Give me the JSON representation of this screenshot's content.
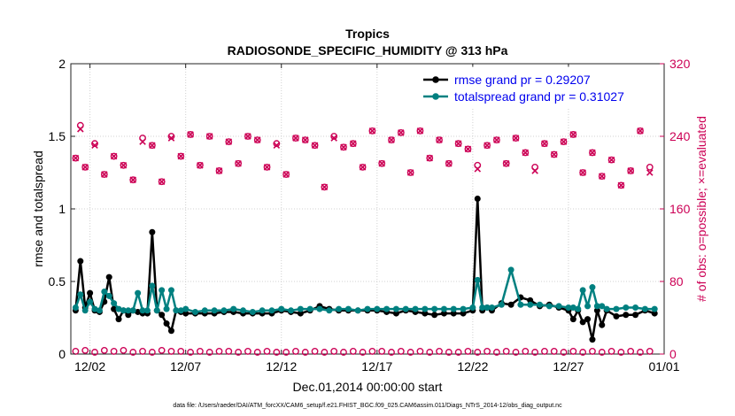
{
  "chart_data": {
    "type": "line",
    "title": "Tropics",
    "subtitle": "RADIOSONDE_SPECIFIC_HUMIDITY @ 313 hPa",
    "xlabel": "Dec.01,2014 00:00:00 start",
    "ylabel": "rmse and totalspread",
    "ylabel_right": "# of obs: o=possible; ×=evaluated",
    "footnote": "data file: /Users/raeder/DAI/ATM_forcXX/CAM6_setup/f.e21.FHIST_BGC.f09_025.CAM6assim.011/Diags_NTrS_2014-12/obs_diag_output.nc",
    "xlim": [
      1.0,
      32.0
    ],
    "ylim": [
      0,
      2
    ],
    "ylim_right": [
      0,
      320
    ],
    "x_tick_values": [
      2,
      7,
      12,
      17,
      22,
      27,
      32
    ],
    "x_tick_labels": [
      "12/02",
      "12/07",
      "12/12",
      "12/17",
      "12/22",
      "12/27",
      "01/01"
    ],
    "y_tick_labels": [
      "0",
      "0.5",
      "1",
      "1.5",
      "2"
    ],
    "y_tick_values": [
      0,
      0.5,
      1,
      1.5,
      2
    ],
    "y_right_tick_labels": [
      "0",
      "80",
      "160",
      "240",
      "320"
    ],
    "y_right_tick_values": [
      0,
      80,
      160,
      240,
      320
    ],
    "grid": true,
    "legend_position": "top-right",
    "colors": {
      "rmse": "#000000",
      "spread": "#008080",
      "obs": "#cc0055"
    },
    "series": [
      {
        "name": "rmse grand pr = 0.29207",
        "axis": "left",
        "color": "#000000",
        "x": [
          1.25,
          1.5,
          1.75,
          2.0,
          2.25,
          2.5,
          2.75,
          3.0,
          3.25,
          3.5,
          3.75,
          4.0,
          4.25,
          4.5,
          4.75,
          5.0,
          5.25,
          5.5,
          5.75,
          6.0,
          6.25,
          6.5,
          6.75,
          7.0,
          7.5,
          8.0,
          8.5,
          9.0,
          9.5,
          10.0,
          10.5,
          11.0,
          11.5,
          12.0,
          12.5,
          13.0,
          13.5,
          14.0,
          14.5,
          15.0,
          15.5,
          16.0,
          16.5,
          17.0,
          17.5,
          18.0,
          18.5,
          19.0,
          19.5,
          20.0,
          20.5,
          21.0,
          21.5,
          22.0,
          22.25,
          22.5,
          22.75,
          23.0,
          23.5,
          24.0,
          24.5,
          25.0,
          25.5,
          26.0,
          26.5,
          27.0,
          27.25,
          27.5,
          27.75,
          28.0,
          28.25,
          28.5,
          28.75,
          29.0,
          29.5,
          30.0,
          30.5,
          31.0,
          31.5
        ],
        "values": [
          0.3,
          0.64,
          0.32,
          0.42,
          0.3,
          0.29,
          0.36,
          0.53,
          0.31,
          0.24,
          0.3,
          0.27,
          0.3,
          0.29,
          0.28,
          0.28,
          0.84,
          0.3,
          0.27,
          0.21,
          0.16,
          0.3,
          0.29,
          0.28,
          0.28,
          0.28,
          0.28,
          0.29,
          0.29,
          0.28,
          0.28,
          0.28,
          0.28,
          0.3,
          0.29,
          0.28,
          0.3,
          0.33,
          0.31,
          0.3,
          0.3,
          0.3,
          0.3,
          0.3,
          0.29,
          0.28,
          0.3,
          0.29,
          0.28,
          0.27,
          0.28,
          0.28,
          0.28,
          0.3,
          1.07,
          0.3,
          0.32,
          0.3,
          0.35,
          0.34,
          0.39,
          0.37,
          0.33,
          0.34,
          0.32,
          0.3,
          0.24,
          0.3,
          0.22,
          0.24,
          0.1,
          0.3,
          0.2,
          0.3,
          0.26,
          0.27,
          0.27,
          0.3,
          0.28
        ]
      },
      {
        "name": "totalspread grand pr = 0.31027",
        "axis": "left",
        "color": "#008080",
        "x": [
          1.25,
          1.5,
          1.75,
          2.0,
          2.25,
          2.5,
          2.75,
          3.0,
          3.25,
          3.5,
          3.75,
          4.0,
          4.25,
          4.5,
          4.75,
          5.0,
          5.25,
          5.5,
          5.75,
          6.0,
          6.25,
          6.5,
          6.75,
          7.0,
          7.5,
          8.0,
          8.5,
          9.0,
          9.5,
          10.0,
          10.5,
          11.0,
          11.5,
          12.0,
          12.5,
          13.0,
          13.5,
          14.0,
          14.5,
          15.0,
          15.5,
          16.0,
          16.5,
          17.0,
          17.5,
          18.0,
          18.5,
          19.0,
          19.5,
          20.0,
          20.5,
          21.0,
          21.5,
          22.0,
          22.25,
          22.5,
          22.75,
          23.0,
          23.5,
          24.0,
          24.5,
          25.0,
          25.5,
          26.0,
          26.5,
          27.0,
          27.25,
          27.5,
          27.75,
          28.0,
          28.25,
          28.5,
          28.75,
          29.0,
          29.5,
          30.0,
          30.5,
          31.0,
          31.5
        ],
        "values": [
          0.32,
          0.41,
          0.3,
          0.36,
          0.31,
          0.3,
          0.43,
          0.4,
          0.35,
          0.31,
          0.3,
          0.3,
          0.3,
          0.42,
          0.3,
          0.3,
          0.47,
          0.3,
          0.44,
          0.31,
          0.44,
          0.3,
          0.3,
          0.31,
          0.29,
          0.3,
          0.3,
          0.3,
          0.31,
          0.3,
          0.29,
          0.3,
          0.3,
          0.31,
          0.3,
          0.31,
          0.31,
          0.31,
          0.3,
          0.31,
          0.31,
          0.3,
          0.31,
          0.31,
          0.31,
          0.31,
          0.31,
          0.31,
          0.31,
          0.31,
          0.31,
          0.31,
          0.31,
          0.32,
          0.51,
          0.32,
          0.32,
          0.32,
          0.34,
          0.58,
          0.34,
          0.34,
          0.34,
          0.33,
          0.33,
          0.32,
          0.32,
          0.31,
          0.44,
          0.33,
          0.46,
          0.33,
          0.33,
          0.31,
          0.31,
          0.32,
          0.32,
          0.31,
          0.31
        ]
      },
      {
        "name": "obs possible",
        "axis": "right",
        "marker": "o",
        "color": "#cc0055",
        "x": [
          1.25,
          1.5,
          1.75,
          2.25,
          2.75,
          3.25,
          3.75,
          4.25,
          4.75,
          5.25,
          5.75,
          6.25,
          6.75,
          7.25,
          7.75,
          8.25,
          8.75,
          9.25,
          9.75,
          10.25,
          10.75,
          11.25,
          11.75,
          12.25,
          12.75,
          13.25,
          13.75,
          14.25,
          14.75,
          15.25,
          15.75,
          16.25,
          16.75,
          17.25,
          17.75,
          18.25,
          18.75,
          19.25,
          19.75,
          20.25,
          20.75,
          21.25,
          21.75,
          22.25,
          22.75,
          23.25,
          23.75,
          24.25,
          24.75,
          25.25,
          25.75,
          26.25,
          26.75,
          27.25,
          27.75,
          28.25,
          28.75,
          29.25,
          29.75,
          30.25,
          30.75,
          31.25
        ],
        "values": [
          216,
          252,
          206,
          232,
          198,
          218,
          208,
          192,
          238,
          230,
          190,
          240,
          218,
          242,
          208,
          240,
          202,
          234,
          210,
          240,
          236,
          206,
          232,
          198,
          238,
          236,
          230,
          184,
          240,
          228,
          232,
          206,
          246,
          210,
          236,
          244,
          200,
          246,
          216,
          236,
          210,
          232,
          226,
          208,
          230,
          236,
          210,
          238,
          222,
          206,
          232,
          220,
          234,
          242,
          200,
          222,
          196,
          214,
          186,
          202,
          246,
          206
        ]
      },
      {
        "name": "obs evaluated",
        "axis": "right",
        "marker": "x",
        "color": "#cc0055",
        "x": [
          1.25,
          1.5,
          1.75,
          2.25,
          2.75,
          3.25,
          3.75,
          4.25,
          4.75,
          5.25,
          5.75,
          6.25,
          6.75,
          7.25,
          7.75,
          8.25,
          8.75,
          9.25,
          9.75,
          10.25,
          10.75,
          11.25,
          11.75,
          12.25,
          12.75,
          13.25,
          13.75,
          14.25,
          14.75,
          15.25,
          15.75,
          16.25,
          16.75,
          17.25,
          17.75,
          18.25,
          18.75,
          19.25,
          19.75,
          20.25,
          20.75,
          21.25,
          21.75,
          22.25,
          22.75,
          23.25,
          23.75,
          24.25,
          24.75,
          25.25,
          25.75,
          26.25,
          26.75,
          27.25,
          27.75,
          28.25,
          28.75,
          29.25,
          29.75,
          30.25,
          30.75,
          31.25
        ],
        "values": [
          216,
          248,
          206,
          230,
          198,
          218,
          208,
          192,
          234,
          230,
          190,
          238,
          218,
          242,
          208,
          240,
          202,
          234,
          210,
          240,
          236,
          206,
          230,
          198,
          238,
          236,
          230,
          184,
          238,
          228,
          232,
          206,
          246,
          210,
          236,
          244,
          200,
          246,
          216,
          236,
          210,
          232,
          226,
          204,
          230,
          236,
          210,
          238,
          222,
          202,
          232,
          220,
          234,
          242,
          200,
          222,
          196,
          214,
          186,
          202,
          246,
          200
        ]
      },
      {
        "name": "obs possible (rmse level)",
        "axis": "right",
        "marker": "o",
        "color": "#cc0055",
        "x": [
          1.25,
          1.75,
          2.25,
          2.75,
          3.25,
          3.75,
          4.25,
          4.75,
          5.25,
          5.75,
          6.25,
          6.75,
          7.25,
          7.75,
          8.25,
          8.75,
          9.25,
          9.75,
          10.25,
          10.75,
          11.25,
          11.75,
          12.25,
          12.75,
          13.25,
          13.75,
          14.25,
          14.75,
          15.25,
          15.75,
          16.25,
          16.75,
          17.25,
          17.75,
          18.25,
          18.75,
          19.25,
          19.75,
          20.25,
          20.75,
          21.25,
          21.75,
          22.25,
          22.75,
          23.25,
          23.75,
          24.25,
          24.75,
          25.25,
          25.75,
          26.25,
          26.75,
          27.25,
          27.75,
          28.25,
          28.75,
          29.25,
          29.75,
          30.25,
          30.75,
          31.25
        ],
        "values": [
          3,
          4,
          2,
          4,
          3,
          4,
          2,
          3,
          2,
          4,
          3,
          3,
          2,
          3,
          2,
          3,
          3,
          2,
          3,
          2,
          3,
          2,
          2,
          3,
          2,
          3,
          2,
          3,
          2,
          3,
          2,
          3,
          3,
          2,
          3,
          2,
          3,
          2,
          3,
          2,
          2,
          3,
          2,
          3,
          2,
          3,
          2,
          3,
          2,
          3,
          3,
          2,
          3,
          2,
          3,
          2,
          3,
          2,
          3,
          2,
          3
        ]
      }
    ]
  }
}
